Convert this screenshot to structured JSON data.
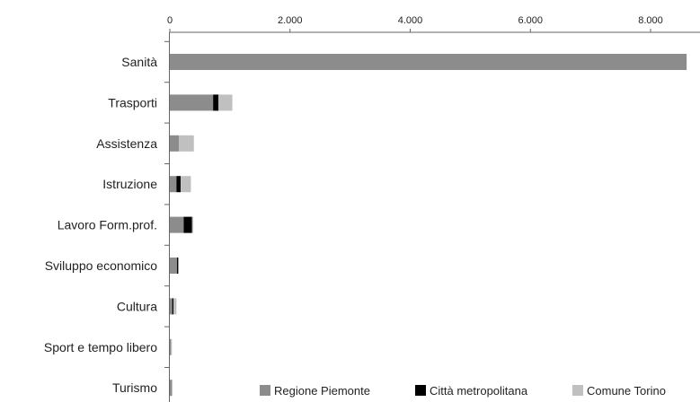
{
  "chart_data": {
    "type": "bar",
    "orientation": "horizontal",
    "stacked": true,
    "categories": [
      "Sanità",
      "Trasporti",
      "Assistenza",
      "Istruzione",
      "Lavoro Form.prof.",
      "Sviluppo economico",
      "Cultura",
      "Sport e tempo libero",
      "Turismo"
    ],
    "series": [
      {
        "name": "Regione Piemonte",
        "color": "#8c8c8c",
        "values": [
          8600,
          720,
          150,
          110,
          230,
          120,
          40,
          20,
          30
        ]
      },
      {
        "name": "Città metropolitana",
        "color": "#000000",
        "values": [
          0,
          90,
          0,
          70,
          140,
          20,
          20,
          0,
          0
        ]
      },
      {
        "name": "Comune Torino",
        "color": "#c0c0c0",
        "values": [
          0,
          230,
          250,
          170,
          20,
          10,
          50,
          15,
          15
        ]
      }
    ],
    "xaxis": {
      "ticks": [
        0,
        2000,
        4000,
        6000,
        8000
      ],
      "tick_labels": [
        "0",
        "2.000",
        "4.000",
        "6.000",
        "8.000"
      ],
      "range": [
        0,
        9000
      ],
      "position": "top"
    },
    "grid": false,
    "legend_position": "bottom-right",
    "title": "",
    "xlabel": "",
    "ylabel": ""
  }
}
